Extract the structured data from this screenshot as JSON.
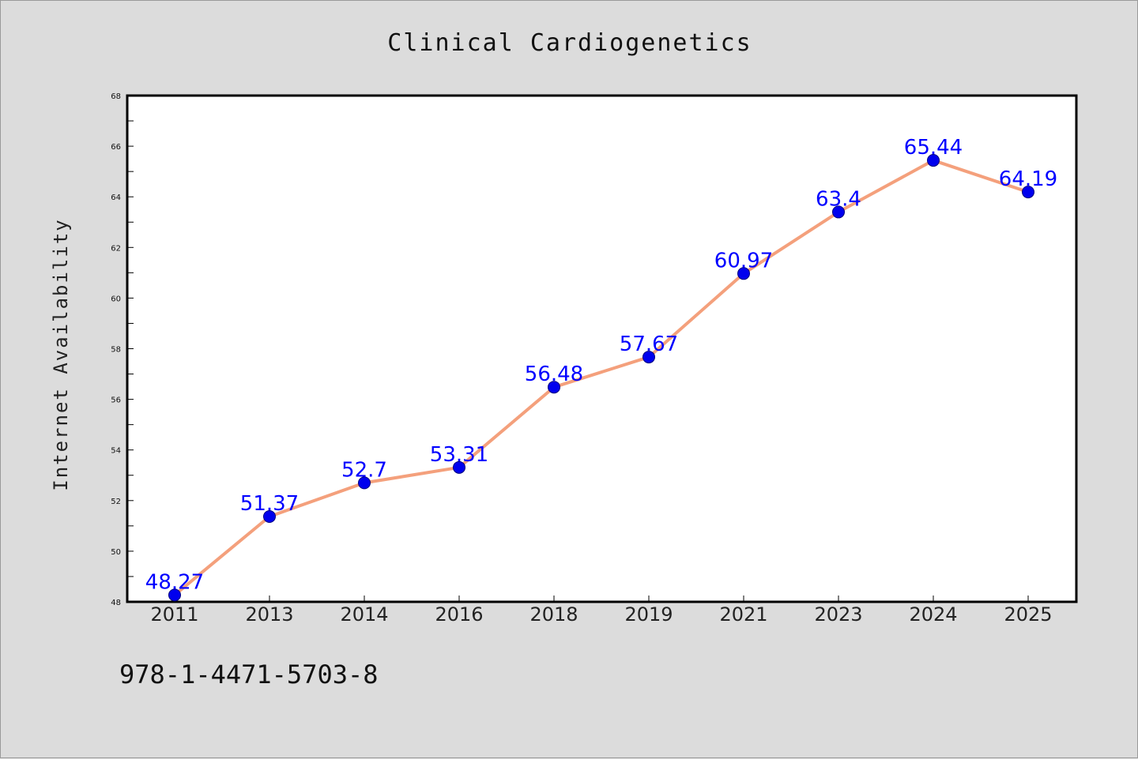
{
  "chart_data": {
    "type": "line",
    "title": "Clinical Cardiogenetics",
    "xlabel": "",
    "ylabel": "Internet Availability",
    "categories": [
      "2011",
      "2013",
      "2014",
      "2016",
      "2018",
      "2019",
      "2021",
      "2023",
      "2024",
      "2025"
    ],
    "series": [
      {
        "values": [
          48.27,
          51.37,
          52.7,
          53.31,
          56.48,
          57.67,
          60.97,
          63.4,
          65.44,
          64.19
        ],
        "data_labels": [
          "48.27",
          "51.37",
          "52.7",
          "53.31",
          "56.48",
          "57.67",
          "60.97",
          "63.4",
          "65.44",
          "64.19"
        ]
      }
    ],
    "ylim": [
      48,
      68
    ],
    "yticks": [
      48,
      50,
      52,
      54,
      56,
      58,
      60,
      62,
      64,
      66,
      68
    ],
    "grid": false,
    "legend": "none",
    "colors": {
      "line": "#f4a07c",
      "marker": "#0000ee",
      "data_label": "#0000ff",
      "background": "#dcdcdc",
      "plot_area": "#ffffff"
    }
  },
  "annotation": {
    "isbn": "978-1-4471-5703-8"
  }
}
